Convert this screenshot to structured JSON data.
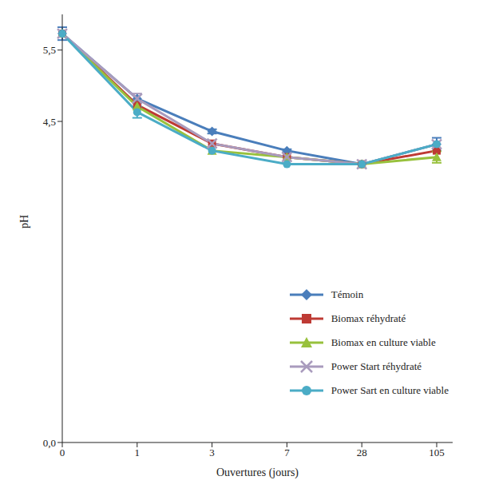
{
  "chart_data": {
    "type": "line",
    "x_label": "Ouvertures (jours)",
    "y_label": "pH",
    "categories": [
      "0",
      "1",
      "3",
      "7",
      "28",
      "105"
    ],
    "ylim": [
      0,
      6
    ],
    "yticks": [
      {
        "value": 0,
        "label": "0,0"
      },
      {
        "value": 4.5,
        "label": "4,5"
      },
      {
        "value": 5.5,
        "label": "5,5"
      }
    ],
    "grid": false,
    "legend": "lower right",
    "series": [
      {
        "name": "Témoin",
        "color": "#4a7ebb",
        "marker": "diamond",
        "values": [
          5.73,
          4.82,
          4.36,
          4.09,
          3.9,
          4.18
        ],
        "errors": [
          0.09,
          null,
          0.03,
          0.02,
          null,
          0.09
        ]
      },
      {
        "name": "Biomax réhydraté",
        "color": "#be3a34",
        "marker": "square",
        "values": [
          5.73,
          4.73,
          4.19,
          4.0,
          3.9,
          4.09
        ],
        "errors": [
          null,
          null,
          null,
          null,
          null,
          null
        ]
      },
      {
        "name": "Biomax en culture viable",
        "color": "#98c13d",
        "marker": "triangle",
        "values": [
          5.73,
          4.71,
          4.09,
          4.0,
          3.9,
          4.0
        ],
        "errors": [
          null,
          null,
          null,
          null,
          null,
          0.08
        ]
      },
      {
        "name": "Power Start réhydraté",
        "color": "#a99bbd",
        "marker": "cross",
        "values": [
          5.73,
          4.82,
          4.19,
          4.0,
          3.9,
          4.18
        ],
        "errors": [
          null,
          0.07,
          null,
          null,
          null,
          null
        ]
      },
      {
        "name": "Power Sart en culture viable",
        "color": "#4bacc6",
        "marker": "circle",
        "values": [
          5.73,
          4.63,
          4.09,
          3.9,
          3.9,
          4.18
        ],
        "errors": [
          null,
          0.08,
          null,
          null,
          null,
          null
        ]
      }
    ]
  }
}
